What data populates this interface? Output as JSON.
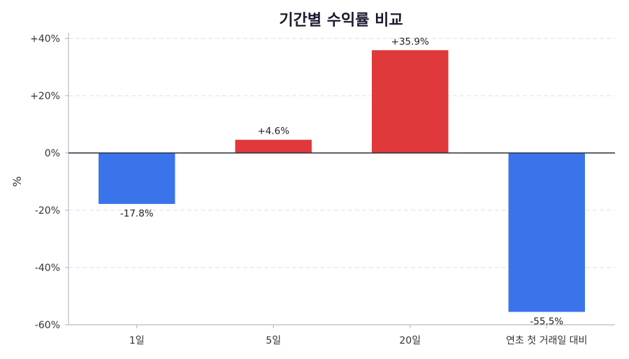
{
  "chart_data": {
    "type": "bar",
    "title": "기간별 수익률 비교",
    "xlabel": "",
    "ylabel": "%",
    "categories": [
      "1일",
      "5일",
      "20일",
      "연초 첫 거래일 대비"
    ],
    "values": [
      -17.8,
      4.6,
      35.9,
      -55.5
    ],
    "data_labels": [
      "-17.8%",
      "+4.6%",
      "+35.9%",
      "-55.5%"
    ],
    "ylim": [
      -60,
      40
    ],
    "yticks": [
      40,
      20,
      0,
      -20,
      -40,
      -60
    ],
    "ytick_labels": [
      "+40%",
      "+20%",
      "0%",
      "-20%",
      "-40%",
      "-60%"
    ],
    "grid": true,
    "colors": {
      "positive": "#e0393b",
      "negative": "#3b74ea"
    }
  }
}
